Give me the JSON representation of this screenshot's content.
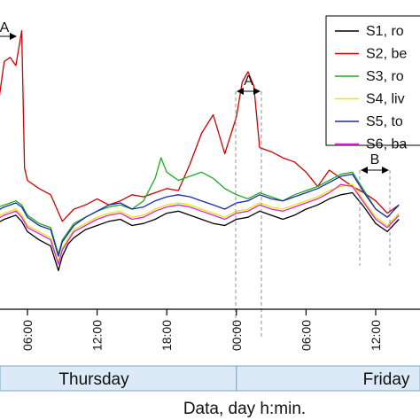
{
  "chart_data": {
    "type": "line",
    "xlabel": "Data, day h:min.",
    "ylabel": "",
    "x_ticks": [
      "06:00",
      "12:00",
      "18:00",
      "00:00",
      "06:00",
      "12:00"
    ],
    "days": [
      "Thursday",
      "Friday"
    ],
    "grid": false,
    "legend_position": "top-right",
    "annotations": [
      "A",
      "A",
      "B"
    ],
    "series": [
      {
        "name": "S1, ro",
        "color": "#000000",
        "x": [
          "03:00",
          "04:00",
          "05:00",
          "05:30",
          "06:00",
          "07:00",
          "08:00",
          "08:40",
          "09:00",
          "09:30",
          "10:00",
          "11:00",
          "12:00",
          "13:00",
          "14:00",
          "15:00",
          "16:00",
          "17:00",
          "18:00",
          "19:00",
          "20:00",
          "21:00",
          "22:00",
          "23:00",
          "00:00",
          "01:00",
          "02:00",
          "03:00",
          "04:00",
          "05:00",
          "06:00",
          "07:00",
          "08:00",
          "09:00",
          "10:00",
          "11:00",
          "12:00",
          "13:00",
          "14:00"
        ],
        "y": [
          16.0,
          16.3,
          16.5,
          16.2,
          15.7,
          15.3,
          15.0,
          13.8,
          14.5,
          15.1,
          15.4,
          15.8,
          16.0,
          16.2,
          16.3,
          16.0,
          16.1,
          16.3,
          16.6,
          16.7,
          16.5,
          16.3,
          16.1,
          16.0,
          16.3,
          16.4,
          16.7,
          16.5,
          16.3,
          16.5,
          16.8,
          17.0,
          17.3,
          17.5,
          17.6,
          16.9,
          16.1,
          15.7,
          16.3
        ]
      },
      {
        "name": "S2, be",
        "color": "#cc0000",
        "x": [
          "03:00",
          "03:30",
          "04:00",
          "04:30",
          "05:00",
          "05:30",
          "05:45",
          "06:00",
          "07:00",
          "08:00",
          "09:00",
          "10:00",
          "11:00",
          "12:00",
          "13:00",
          "14:00",
          "15:00",
          "16:00",
          "17:00",
          "18:00",
          "19:00",
          "20:00",
          "21:00",
          "22:00",
          "23:00",
          "00:00",
          "00:30",
          "01:00",
          "01:30",
          "02:00",
          "03:00",
          "04:00",
          "05:00",
          "06:00",
          "07:00",
          "08:00",
          "09:00",
          "10:00",
          "11:00",
          "12:00",
          "13:00",
          "14:00"
        ],
        "y": [
          19.5,
          22.0,
          24.0,
          24.2,
          23.8,
          25.5,
          18.8,
          18.2,
          17.8,
          17.5,
          16.2,
          16.8,
          17.0,
          17.3,
          17.0,
          17.2,
          17.5,
          17.4,
          17.6,
          17.8,
          17.7,
          19.0,
          20.5,
          21.4,
          19.5,
          21.3,
          23.0,
          23.5,
          22.8,
          19.8,
          19.6,
          19.3,
          19.1,
          18.6,
          17.9,
          18.7,
          18.3,
          17.9,
          17.6,
          17.2,
          16.6,
          17.0
        ]
      },
      {
        "name": "S3, ro",
        "color": "#22aa22",
        "x": [
          "03:00",
          "04:00",
          "05:00",
          "05:30",
          "06:00",
          "07:00",
          "08:00",
          "08:40",
          "09:00",
          "10:00",
          "11:00",
          "12:00",
          "13:00",
          "14:00",
          "15:00",
          "16:00",
          "17:00",
          "17:30",
          "18:00",
          "19:00",
          "20:00",
          "21:00",
          "22:00",
          "23:00",
          "00:00",
          "01:00",
          "02:00",
          "03:00",
          "04:00",
          "05:00",
          "06:00",
          "07:00",
          "08:00",
          "09:00",
          "10:00",
          "11:00",
          "12:00",
          "13:00",
          "14:00"
        ],
        "y": [
          16.8,
          17.0,
          17.2,
          17.0,
          16.5,
          16.1,
          15.9,
          14.6,
          15.3,
          16.1,
          16.4,
          16.7,
          16.9,
          17.0,
          16.8,
          17.2,
          18.3,
          19.3,
          18.6,
          18.2,
          18.4,
          18.6,
          18.3,
          17.8,
          17.5,
          17.3,
          17.6,
          17.4,
          17.2,
          17.5,
          17.7,
          17.9,
          18.2,
          18.5,
          18.6,
          17.7,
          16.8,
          16.4,
          17.0
        ]
      },
      {
        "name": "S4, liv",
        "color": "#e6e600",
        "x": [
          "03:00",
          "04:00",
          "05:00",
          "05:30",
          "06:00",
          "07:00",
          "08:00",
          "08:40",
          "09:00",
          "10:00",
          "11:00",
          "12:00",
          "13:00",
          "14:00",
          "15:00",
          "16:00",
          "17:00",
          "18:00",
          "19:00",
          "20:00",
          "21:00",
          "22:00",
          "23:00",
          "00:00",
          "01:00",
          "02:00",
          "03:00",
          "04:00",
          "05:00",
          "06:00",
          "07:00",
          "08:00",
          "09:00",
          "10:00",
          "11:00",
          "12:00",
          "13:00",
          "14:00"
        ],
        "y": [
          16.3,
          16.6,
          16.8,
          16.5,
          16.0,
          15.7,
          15.4,
          14.2,
          14.9,
          15.8,
          16.1,
          16.4,
          16.6,
          16.7,
          16.4,
          16.5,
          16.8,
          17.0,
          17.1,
          17.0,
          16.8,
          16.6,
          16.4,
          16.7,
          16.8,
          17.1,
          16.9,
          16.8,
          17.0,
          17.2,
          17.4,
          17.7,
          17.9,
          18.0,
          17.2,
          16.4,
          16.0,
          16.6
        ]
      },
      {
        "name": "S5, to",
        "color": "#1a2aa8",
        "x": [
          "03:00",
          "04:00",
          "05:00",
          "05:30",
          "06:00",
          "07:00",
          "08:00",
          "08:40",
          "09:00",
          "10:00",
          "11:00",
          "12:00",
          "13:00",
          "14:00",
          "15:00",
          "16:00",
          "17:00",
          "18:00",
          "19:00",
          "20:00",
          "21:00",
          "22:00",
          "23:00",
          "00:00",
          "01:00",
          "02:00",
          "03:00",
          "04:00",
          "05:00",
          "06:00",
          "07:00",
          "08:00",
          "09:00",
          "10:00",
          "11:00",
          "12:00",
          "13:00",
          "14:00"
        ],
        "y": [
          16.6,
          16.9,
          17.1,
          16.9,
          16.4,
          16.0,
          15.8,
          14.5,
          15.2,
          16.0,
          16.4,
          16.7,
          17.0,
          17.1,
          16.8,
          16.9,
          17.2,
          17.4,
          17.5,
          17.4,
          17.2,
          17.0,
          16.8,
          17.1,
          17.2,
          17.5,
          17.3,
          17.2,
          17.4,
          17.6,
          17.8,
          18.1,
          18.4,
          18.5,
          17.6,
          16.8,
          16.4,
          17.0
        ]
      },
      {
        "name": "S6, ba",
        "color": "#dd22dd",
        "x": [
          "03:00",
          "04:00",
          "05:00",
          "05:30",
          "06:00",
          "07:00",
          "08:00",
          "08:40",
          "09:00",
          "10:00",
          "11:00",
          "12:00",
          "13:00",
          "14:00",
          "15:00",
          "16:00",
          "17:00",
          "18:00",
          "19:00",
          "20:00",
          "21:00",
          "22:00",
          "23:00",
          "00:00",
          "01:00",
          "02:00",
          "03:00",
          "04:00",
          "05:00",
          "06:00",
          "07:00",
          "08:00",
          "09:00",
          "10:00",
          "11:00",
          "12:00",
          "13:00",
          "14:00"
        ],
        "y": [
          16.2,
          16.5,
          16.7,
          16.4,
          15.9,
          15.6,
          15.3,
          14.1,
          14.8,
          15.7,
          16.0,
          16.3,
          16.5,
          16.6,
          16.3,
          16.4,
          16.7,
          16.9,
          17.0,
          16.9,
          16.7,
          16.5,
          16.3,
          16.6,
          16.7,
          17.0,
          16.8,
          16.7,
          16.9,
          17.1,
          17.3,
          17.6,
          18.0,
          17.9,
          17.1,
          16.3,
          15.9,
          16.5
        ]
      }
    ]
  }
}
